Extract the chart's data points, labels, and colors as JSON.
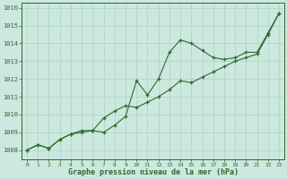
{
  "x": [
    0,
    1,
    2,
    3,
    4,
    5,
    6,
    7,
    8,
    9,
    10,
    11,
    12,
    13,
    14,
    15,
    16,
    17,
    18,
    19,
    20,
    21,
    22,
    23
  ],
  "y_main": [
    1008.0,
    1008.3,
    1008.1,
    1008.6,
    1008.9,
    1009.1,
    1009.1,
    1009.0,
    1009.4,
    1009.9,
    1011.9,
    1011.1,
    1012.0,
    1013.5,
    1014.2,
    1014.0,
    1013.6,
    1013.2,
    1013.1,
    1013.2,
    1013.5,
    1013.5,
    1014.6,
    1015.7
  ],
  "y_trend": [
    1008.0,
    1008.3,
    1008.1,
    1008.6,
    1008.9,
    1009.0,
    1009.1,
    1009.8,
    1010.2,
    1010.5,
    1010.4,
    1010.7,
    1011.0,
    1011.4,
    1011.9,
    1011.8,
    1012.1,
    1012.4,
    1012.7,
    1013.0,
    1013.2,
    1013.4,
    1014.5,
    1015.7
  ],
  "ylim": [
    1007.5,
    1016.3
  ],
  "yticks": [
    1008,
    1009,
    1010,
    1011,
    1012,
    1013,
    1014,
    1015,
    1016
  ],
  "xlim": [
    -0.5,
    23.5
  ],
  "xticks": [
    0,
    1,
    2,
    3,
    4,
    5,
    6,
    7,
    8,
    9,
    10,
    11,
    12,
    13,
    14,
    15,
    16,
    17,
    18,
    19,
    20,
    21,
    22,
    23
  ],
  "line_color": "#2d6a2d",
  "marker_style": "+",
  "bg_color": "#cce8df",
  "grid_color": "#aad4c8",
  "xlabel": "Graphe pression niveau de la mer (hPa)",
  "xlabel_color": "#2d6a2d"
}
